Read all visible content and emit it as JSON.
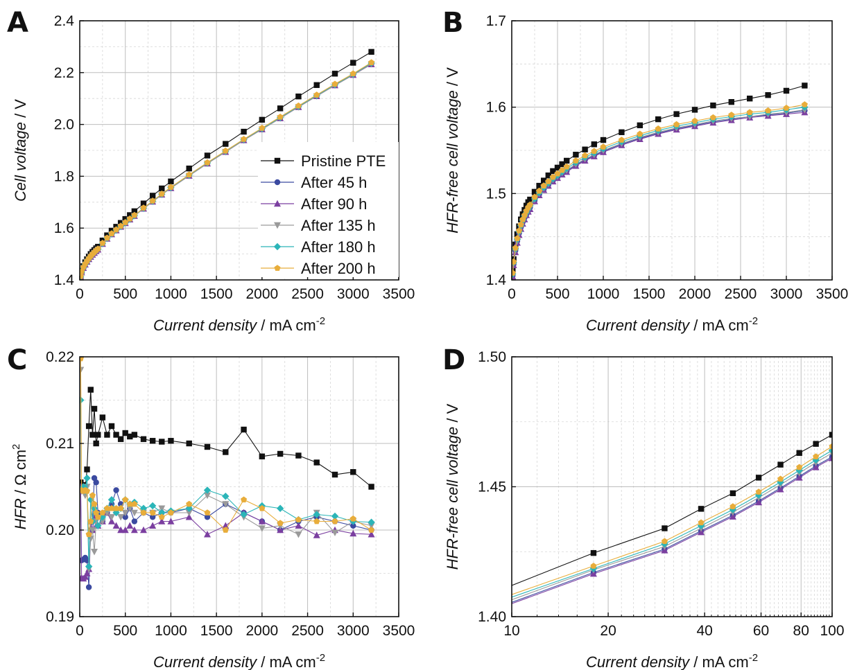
{
  "series_styles": [
    {
      "name": "Pristine PTE",
      "color": "#111111",
      "marker": "square"
    },
    {
      "name": "After 45 h",
      "color": "#3b4aa0",
      "marker": "circle"
    },
    {
      "name": "After 90 h",
      "color": "#7b3fa0",
      "marker": "triangle-up"
    },
    {
      "name": "After 135 h",
      "color": "#9a9a9a",
      "marker": "triangle-down"
    },
    {
      "name": "After 180 h",
      "color": "#2bb5b8",
      "marker": "diamond"
    },
    {
      "name": "After 200 h",
      "color": "#e8ad3b",
      "marker": "pentagon"
    }
  ],
  "chart_data": [
    {
      "panel": "A",
      "type": "line",
      "xlabel_italic": "Current density",
      "xlabel_unit": " / mA cm",
      "xlabel_sup": "-2",
      "ylabel_italic": "Cell voltage",
      "ylabel_unit": " / V",
      "xlim": [
        0,
        3500
      ],
      "ylim": [
        1.4,
        2.4
      ],
      "xticks": [
        0,
        500,
        1000,
        1500,
        2000,
        2500,
        3000,
        3500
      ],
      "yticks": [
        1.4,
        1.6,
        1.8,
        2.0,
        2.2,
        2.4
      ],
      "ytick_labels": [
        "1.4",
        "1.6",
        "1.8",
        "2.0",
        "2.2",
        "2.4"
      ],
      "grid": true,
      "legend": "center-right",
      "x": [
        10,
        20,
        40,
        60,
        80,
        100,
        120,
        140,
        160,
        180,
        200,
        250,
        300,
        350,
        400,
        450,
        500,
        550,
        600,
        700,
        800,
        900,
        1000,
        1200,
        1400,
        1600,
        1800,
        2000,
        2200,
        2400,
        2600,
        2800,
        3000,
        3200
      ],
      "series": [
        {
          "name": "Pristine PTE",
          "values": [
            1.415,
            1.435,
            1.453,
            1.468,
            1.48,
            1.49,
            1.5,
            1.508,
            1.515,
            1.522,
            1.528,
            1.552,
            1.572,
            1.59,
            1.605,
            1.62,
            1.635,
            1.65,
            1.665,
            1.695,
            1.725,
            1.753,
            1.78,
            1.83,
            1.88,
            1.925,
            1.972,
            2.018,
            2.062,
            2.108,
            2.152,
            2.196,
            2.238,
            2.28
          ]
        },
        {
          "name": "After 45 h",
          "values": [
            1.412,
            1.43,
            1.447,
            1.46,
            1.471,
            1.481,
            1.49,
            1.498,
            1.505,
            1.512,
            1.518,
            1.54,
            1.56,
            1.577,
            1.592,
            1.606,
            1.62,
            1.634,
            1.648,
            1.676,
            1.703,
            1.73,
            1.755,
            1.803,
            1.85,
            1.895,
            1.94,
            1.982,
            2.025,
            2.068,
            2.11,
            2.152,
            2.192,
            2.234
          ]
        },
        {
          "name": "After 90 h",
          "values": [
            1.411,
            1.429,
            1.446,
            1.459,
            1.47,
            1.48,
            1.489,
            1.497,
            1.504,
            1.511,
            1.517,
            1.539,
            1.559,
            1.576,
            1.591,
            1.605,
            1.619,
            1.633,
            1.647,
            1.675,
            1.702,
            1.729,
            1.754,
            1.802,
            1.849,
            1.894,
            1.939,
            1.981,
            2.024,
            2.067,
            2.109,
            2.151,
            2.191,
            2.232
          ]
        },
        {
          "name": "After 135 h",
          "values": [
            1.411,
            1.429,
            1.446,
            1.459,
            1.47,
            1.48,
            1.489,
            1.497,
            1.504,
            1.511,
            1.517,
            1.539,
            1.559,
            1.576,
            1.591,
            1.605,
            1.619,
            1.633,
            1.647,
            1.675,
            1.702,
            1.729,
            1.754,
            1.802,
            1.849,
            1.894,
            1.939,
            1.981,
            2.024,
            2.067,
            2.109,
            2.151,
            2.191,
            2.233
          ]
        },
        {
          "name": "After 180 h",
          "values": [
            1.413,
            1.431,
            1.448,
            1.461,
            1.472,
            1.482,
            1.491,
            1.499,
            1.506,
            1.513,
            1.519,
            1.541,
            1.561,
            1.578,
            1.593,
            1.607,
            1.621,
            1.635,
            1.649,
            1.677,
            1.704,
            1.731,
            1.757,
            1.805,
            1.852,
            1.897,
            1.942,
            1.984,
            2.027,
            2.07,
            2.112,
            2.154,
            2.194,
            2.237
          ]
        },
        {
          "name": "After 200 h",
          "values": [
            1.414,
            1.432,
            1.449,
            1.462,
            1.473,
            1.483,
            1.492,
            1.5,
            1.507,
            1.514,
            1.52,
            1.542,
            1.562,
            1.579,
            1.594,
            1.608,
            1.622,
            1.636,
            1.65,
            1.678,
            1.705,
            1.732,
            1.758,
            1.806,
            1.853,
            1.898,
            1.943,
            1.986,
            2.029,
            2.072,
            2.114,
            2.156,
            2.196,
            2.239
          ]
        }
      ]
    },
    {
      "panel": "B",
      "type": "line",
      "xlabel_italic": "Current density",
      "xlabel_unit": " / mA cm",
      "xlabel_sup": "-2",
      "ylabel_italic": "HFR-free cell voltage",
      "ylabel_unit": " / V",
      "xlim": [
        0,
        3500
      ],
      "ylim": [
        1.4,
        1.7
      ],
      "xticks": [
        0,
        500,
        1000,
        1500,
        2000,
        2500,
        3000,
        3500
      ],
      "yticks": [
        1.4,
        1.5,
        1.6,
        1.7
      ],
      "ytick_labels": [
        "1.4",
        "1.5",
        "1.6",
        "1.7"
      ],
      "grid": true,
      "x": [
        10,
        20,
        40,
        60,
        80,
        100,
        120,
        140,
        160,
        180,
        200,
        250,
        300,
        350,
        400,
        450,
        500,
        550,
        600,
        700,
        800,
        900,
        1000,
        1200,
        1400,
        1600,
        1800,
        2000,
        2200,
        2400,
        2600,
        2800,
        3000,
        3200
      ],
      "series": [
        {
          "name": "Pristine PTE",
          "values": [
            1.412,
            1.424,
            1.441,
            1.453,
            1.462,
            1.47,
            1.476,
            1.481,
            1.486,
            1.49,
            1.493,
            1.502,
            1.509,
            1.515,
            1.521,
            1.526,
            1.53,
            1.534,
            1.538,
            1.545,
            1.551,
            1.557,
            1.562,
            1.571,
            1.579,
            1.586,
            1.592,
            1.597,
            1.602,
            1.606,
            1.61,
            1.614,
            1.619,
            1.625
          ]
        },
        {
          "name": "After 45 h",
          "values": [
            1.405,
            1.418,
            1.434,
            1.445,
            1.454,
            1.461,
            1.467,
            1.472,
            1.476,
            1.48,
            1.484,
            1.492,
            1.499,
            1.505,
            1.51,
            1.515,
            1.519,
            1.523,
            1.526,
            1.533,
            1.539,
            1.544,
            1.549,
            1.557,
            1.564,
            1.57,
            1.575,
            1.579,
            1.583,
            1.586,
            1.589,
            1.591,
            1.593,
            1.596
          ]
        },
        {
          "name": "After 90 h",
          "values": [
            1.404,
            1.417,
            1.432,
            1.443,
            1.452,
            1.459,
            1.465,
            1.47,
            1.475,
            1.479,
            1.482,
            1.491,
            1.498,
            1.504,
            1.509,
            1.514,
            1.518,
            1.522,
            1.525,
            1.532,
            1.538,
            1.543,
            1.548,
            1.556,
            1.563,
            1.569,
            1.574,
            1.578,
            1.582,
            1.585,
            1.588,
            1.59,
            1.592,
            1.594
          ]
        },
        {
          "name": "After 135 h",
          "values": [
            1.406,
            1.419,
            1.434,
            1.445,
            1.454,
            1.461,
            1.467,
            1.472,
            1.477,
            1.481,
            1.484,
            1.493,
            1.5,
            1.506,
            1.511,
            1.516,
            1.52,
            1.524,
            1.527,
            1.534,
            1.54,
            1.545,
            1.55,
            1.558,
            1.565,
            1.571,
            1.576,
            1.58,
            1.584,
            1.587,
            1.589,
            1.592,
            1.594,
            1.597
          ]
        },
        {
          "name": "After 180 h",
          "values": [
            1.407,
            1.42,
            1.436,
            1.447,
            1.456,
            1.463,
            1.469,
            1.474,
            1.478,
            1.482,
            1.486,
            1.494,
            1.501,
            1.507,
            1.512,
            1.517,
            1.521,
            1.525,
            1.529,
            1.536,
            1.542,
            1.547,
            1.552,
            1.56,
            1.567,
            1.573,
            1.578,
            1.582,
            1.586,
            1.589,
            1.592,
            1.594,
            1.597,
            1.6
          ]
        },
        {
          "name": "After 200 h",
          "values": [
            1.408,
            1.421,
            1.437,
            1.448,
            1.457,
            1.464,
            1.47,
            1.475,
            1.48,
            1.484,
            1.487,
            1.496,
            1.503,
            1.509,
            1.514,
            1.519,
            1.523,
            1.527,
            1.531,
            1.538,
            1.544,
            1.549,
            1.554,
            1.562,
            1.569,
            1.575,
            1.58,
            1.584,
            1.588,
            1.591,
            1.594,
            1.596,
            1.599,
            1.603
          ]
        }
      ]
    },
    {
      "panel": "C",
      "type": "line",
      "xlabel_italic": "Current density",
      "xlabel_unit": " / mA cm",
      "xlabel_sup": "-2",
      "ylabel_italic": "HFR",
      "ylabel_unit": " / Ω cm",
      "ylabel_sup": "2",
      "xlim": [
        0,
        3500
      ],
      "ylim": [
        0.19,
        0.22
      ],
      "xticks": [
        0,
        500,
        1000,
        1500,
        2000,
        2500,
        3000,
        3500
      ],
      "yticks": [
        0.19,
        0.2,
        0.21,
        0.22
      ],
      "ytick_labels": [
        "0.19",
        "0.20",
        "0.21",
        "0.22"
      ],
      "grid": true,
      "x": [
        10,
        20,
        40,
        60,
        80,
        100,
        120,
        140,
        160,
        180,
        200,
        250,
        300,
        350,
        400,
        450,
        500,
        550,
        600,
        700,
        800,
        900,
        1000,
        1200,
        1400,
        1600,
        1800,
        2000,
        2200,
        2400,
        2600,
        2800,
        3000,
        3200
      ],
      "series": [
        {
          "name": "Pristine PTE",
          "values": [
            0.2055,
            0.205,
            0.2052,
            0.2048,
            0.207,
            0.212,
            0.2162,
            0.211,
            0.214,
            0.21,
            0.211,
            0.213,
            0.211,
            0.212,
            0.211,
            0.2105,
            0.2112,
            0.2108,
            0.211,
            0.2105,
            0.2103,
            0.2102,
            0.2103,
            0.21,
            0.2096,
            0.209,
            0.2116,
            0.2085,
            0.2088,
            0.2086,
            0.2078,
            0.2064,
            0.2067,
            0.205
          ]
        },
        {
          "name": "After 45 h",
          "values": [
            0.205,
            0.1965,
            0.1966,
            0.1968,
            0.1965,
            0.1934,
            0.2,
            0.201,
            0.206,
            0.2055,
            0.202,
            0.201,
            0.202,
            0.203,
            0.2046,
            0.203,
            0.2015,
            0.2025,
            0.201,
            0.202,
            0.2015,
            0.202,
            0.202,
            0.2025,
            0.2015,
            0.203,
            0.202,
            0.201,
            0.2,
            0.201,
            0.2015,
            0.201,
            0.2005,
            0.2
          ]
        },
        {
          "name": "After 90 h",
          "values": [
            0.205,
            0.1945,
            0.1944,
            0.1946,
            0.195,
            0.1955,
            0.201,
            0.2,
            0.2015,
            0.2005,
            0.2005,
            0.201,
            0.202,
            0.201,
            0.2005,
            0.2,
            0.2,
            0.2005,
            0.2,
            0.2,
            0.2005,
            0.201,
            0.201,
            0.2015,
            0.1995,
            0.2005,
            0.202,
            0.201,
            0.2,
            0.2005,
            0.1994,
            0.2,
            0.1996,
            0.1995
          ]
        },
        {
          "name": "After 135 h",
          "values": [
            0.2185,
            0.2045,
            0.2045,
            0.204,
            0.205,
            0.1955,
            0.199,
            0.2,
            0.1975,
            0.201,
            0.2005,
            0.201,
            0.202,
            0.2015,
            0.202,
            0.2015,
            0.202,
            0.2025,
            0.202,
            0.202,
            0.202,
            0.2025,
            0.202,
            0.202,
            0.204,
            0.203,
            0.2015,
            0.2002,
            0.2005,
            0.1995,
            0.202,
            0.1997,
            0.201,
            0.2005
          ]
        },
        {
          "name": "After 180 h",
          "values": [
            0.215,
            0.2048,
            0.205,
            0.2045,
            0.206,
            0.1958,
            0.2035,
            0.201,
            0.2025,
            0.202,
            0.2005,
            0.2015,
            0.2025,
            0.2035,
            0.202,
            0.2025,
            0.2035,
            0.203,
            0.2032,
            0.2025,
            0.2028,
            0.202,
            0.2022,
            0.2025,
            0.2046,
            0.2039,
            0.2018,
            0.2028,
            0.2025,
            0.2012,
            0.2018,
            0.2016,
            0.201,
            0.2009
          ]
        },
        {
          "name": "After 200 h",
          "values": [
            0.2198,
            0.2046,
            0.2045,
            0.2046,
            0.2045,
            0.1995,
            0.201,
            0.204,
            0.203,
            0.202,
            0.2015,
            0.202,
            0.2025,
            0.2025,
            0.2025,
            0.2025,
            0.2035,
            0.203,
            0.203,
            0.202,
            0.202,
            0.2015,
            0.202,
            0.203,
            0.202,
            0.2,
            0.2035,
            0.2025,
            0.2008,
            0.2012,
            0.201,
            0.201,
            0.2013,
            0.2
          ]
        }
      ]
    },
    {
      "panel": "D",
      "type": "line",
      "xlabel_italic": "Current density",
      "xlabel_unit": " / mA cm",
      "xlabel_sup": "-2",
      "ylabel_italic": "HFR-free cell voltage",
      "ylabel_unit": " / V",
      "xscale": "log",
      "xlim": [
        10,
        100
      ],
      "ylim": [
        1.4,
        1.5
      ],
      "xticks": [
        10,
        20,
        40,
        60,
        80,
        100
      ],
      "yticks": [
        1.4,
        1.45,
        1.5
      ],
      "ytick_labels": [
        "1.40",
        "1.45",
        "1.50"
      ],
      "grid": true,
      "x": [
        18,
        30,
        39,
        49,
        59,
        69,
        79,
        89,
        100
      ],
      "fit_range": [
        10,
        100
      ],
      "series": [
        {
          "name": "Pristine PTE",
          "values": [
            1.4245,
            1.434,
            1.4415,
            1.4475,
            1.4535,
            1.4585,
            1.463,
            1.4665,
            1.47
          ],
          "fit_start": 1.412
        },
        {
          "name": "After 45 h",
          "values": [
            1.417,
            1.426,
            1.433,
            1.439,
            1.4445,
            1.4495,
            1.454,
            1.458,
            1.4615
          ],
          "fit_start": 1.4055
        },
        {
          "name": "After 90 h",
          "values": [
            1.4165,
            1.4255,
            1.4325,
            1.4385,
            1.444,
            1.449,
            1.4535,
            1.4575,
            1.461
          ],
          "fit_start": 1.405
        },
        {
          "name": "After 135 h",
          "values": [
            1.418,
            1.427,
            1.434,
            1.4402,
            1.4458,
            1.4508,
            1.4553,
            1.4593,
            1.463
          ],
          "fit_start": 1.4065
        },
        {
          "name": "After 180 h",
          "values": [
            1.4185,
            1.428,
            1.435,
            1.4412,
            1.4468,
            1.4518,
            1.4563,
            1.4603,
            1.464
          ],
          "fit_start": 1.4075
        },
        {
          "name": "After 200 h",
          "values": [
            1.4195,
            1.429,
            1.4362,
            1.4424,
            1.448,
            1.453,
            1.4575,
            1.4616,
            1.4655
          ],
          "fit_start": 1.4085
        }
      ]
    }
  ]
}
